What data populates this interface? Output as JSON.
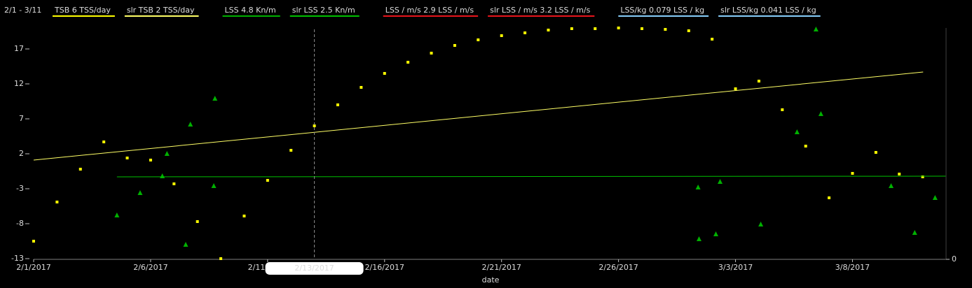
{
  "chart_data": {
    "type": "scatter",
    "date_range": "2/1 - 3/11",
    "x_label": "date",
    "xlim": [
      0,
      39
    ],
    "xticks": [
      {
        "value": 0,
        "label": "2/1/2017"
      },
      {
        "value": 5,
        "label": "2/6/2017"
      },
      {
        "value": 10,
        "label": "2/11/2017"
      },
      {
        "value": 15,
        "label": "2/16/2017"
      },
      {
        "value": 20,
        "label": "2/21/2017"
      },
      {
        "value": 25,
        "label": "2/26/2017"
      },
      {
        "value": 30,
        "label": "3/3/2017"
      },
      {
        "value": 35,
        "label": "3/8/2017"
      }
    ],
    "ylim": [
      -13.1,
      20
    ],
    "yticks": [
      17,
      12,
      7,
      2,
      -3,
      -8,
      -13
    ],
    "y2lim": [
      0,
      1
    ],
    "y2ticks": [
      0
    ],
    "cursor": {
      "x": 12,
      "label": "2/13/2017"
    },
    "series": [
      {
        "name": "TSB  6 TSS/day",
        "color": "#ffff00",
        "mark": "square",
        "x": [
          0,
          1,
          2,
          3,
          4,
          5,
          6,
          7,
          8,
          9,
          10,
          11,
          12,
          13,
          14,
          15,
          16,
          17,
          18,
          19,
          20,
          21,
          22,
          23,
          24,
          25,
          26,
          27,
          28,
          29,
          30,
          31,
          32,
          33,
          34,
          35,
          36,
          37,
          38
        ],
        "values": [
          -10.5,
          -4.9,
          -0.2,
          3.7,
          1.4,
          1.1,
          -2.3,
          -7.7,
          -13.0,
          -6.9,
          -1.8,
          2.5,
          6.0,
          9.0,
          11.5,
          13.5,
          15.1,
          16.4,
          17.5,
          18.3,
          18.9,
          19.3,
          19.7,
          19.9,
          19.9,
          20.0,
          19.9,
          19.8,
          19.6,
          18.4,
          11.3,
          12.4,
          8.3,
          3.1,
          -4.3,
          -0.8,
          2.2,
          -0.9,
          -1.3
        ]
      },
      {
        "name": "slr TSB  2 TSS/day",
        "color": "#ffff66",
        "mark": "line",
        "x": [
          0,
          38.02
        ],
        "values": [
          1.1,
          13.7
        ]
      },
      {
        "name": "LSS  4.8 Kn/m",
        "color": "#00b000",
        "mark": "triangle",
        "x": [
          3.56,
          4.55,
          5.5,
          5.7,
          6.5,
          6.7,
          7.7,
          7.75,
          28.4,
          28.44,
          29.16,
          29.34,
          31.08,
          32.63,
          33.44,
          33.65,
          36.65,
          37.66,
          38.53
        ],
        "values": [
          -6.8,
          -3.6,
          -1.2,
          2.0,
          -11.0,
          6.2,
          -2.6,
          9.9,
          -2.8,
          -10.2,
          -9.5,
          -2.0,
          -8.1,
          5.1,
          19.8,
          7.7,
          -2.6,
          -9.3,
          -4.3
        ]
      },
      {
        "name": "slr LSS  2.5 Kn/m",
        "color": "#00c000",
        "mark": "line",
        "x": [
          3.56,
          38.98
        ],
        "values": [
          -1.3,
          -1.2
        ]
      },
      {
        "name": "LSS / m/s  2.9 LSS / m/s",
        "color": "#e8141c",
        "mark": "square",
        "x": [],
        "values": []
      },
      {
        "name": "slr LSS / m/s  3.2 LSS / m/s",
        "color": "#e8141c",
        "mark": "line",
        "x": [],
        "values": []
      },
      {
        "name": "LSS/kg  0.079 LSS / kg",
        "color": "#87cefa",
        "mark": "square",
        "x": [],
        "values": []
      },
      {
        "name": "slr LSS/kg  0.041 LSS / kg",
        "color": "#87cefa",
        "mark": "line",
        "x": [],
        "values": []
      }
    ]
  }
}
